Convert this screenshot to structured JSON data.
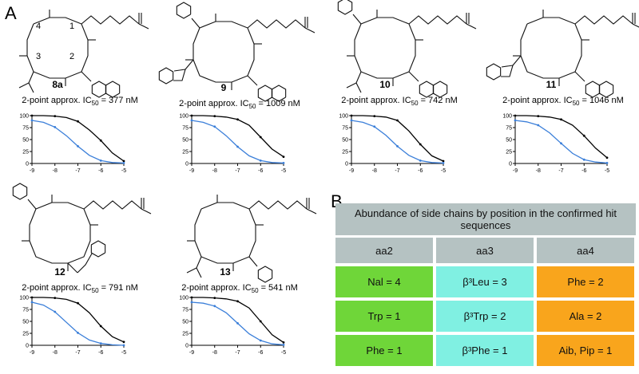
{
  "panels": [
    "A",
    "B"
  ],
  "plot_axes": {
    "xlim": [
      -9,
      -5
    ],
    "ylim": [
      0,
      100
    ],
    "xticks": [
      -9,
      -8,
      -7,
      -6,
      -5
    ],
    "yticks": [
      0,
      25,
      50,
      75,
      100
    ]
  },
  "compounds": [
    {
      "label": "8a",
      "ring_positions": [
        "1",
        "2",
        "3",
        "4"
      ],
      "ic50": {
        "prefix": "2-point approx. IC",
        "sub": "50",
        "value": "= 377 nM"
      },
      "curves": [
        {
          "color": "#000000",
          "x": [
            -9,
            -8.5,
            -8,
            -7.5,
            -7,
            -6.5,
            -6,
            -5.5,
            -5
          ],
          "values": [
            100,
            100,
            99,
            96,
            88,
            70,
            48,
            22,
            5
          ]
        },
        {
          "color": "#3b7fd9",
          "x": [
            -9,
            -8.5,
            -8,
            -7.5,
            -7,
            -6.5,
            -6,
            -5.5,
            -5
          ],
          "values": [
            90,
            86,
            76,
            58,
            36,
            17,
            6,
            2,
            1
          ]
        }
      ]
    },
    {
      "label": "9",
      "ic50": {
        "prefix": "2-point approx. IC",
        "sub": "50",
        "value": "= 1009 nM"
      },
      "curves": [
        {
          "color": "#000000",
          "x": [
            -9,
            -8.5,
            -8,
            -7.5,
            -7,
            -6.5,
            -6,
            -5.5,
            -5
          ],
          "values": [
            100,
            100,
            99,
            97,
            92,
            80,
            55,
            30,
            14
          ]
        },
        {
          "color": "#3b7fd9",
          "x": [
            -9,
            -8.5,
            -8,
            -7.5,
            -7,
            -6.5,
            -6,
            -5.5,
            -5
          ],
          "values": [
            90,
            86,
            77,
            58,
            35,
            16,
            6,
            2,
            1
          ]
        }
      ]
    },
    {
      "label": "10",
      "ic50": {
        "prefix": "2-point approx. IC",
        "sub": "50",
        "value": "= 742 nM"
      },
      "curves": [
        {
          "color": "#000000",
          "x": [
            -9,
            -8.5,
            -8,
            -7.5,
            -7,
            -6.5,
            -6,
            -5.5,
            -5
          ],
          "values": [
            100,
            100,
            99,
            97,
            90,
            68,
            40,
            16,
            5
          ]
        },
        {
          "color": "#3b7fd9",
          "x": [
            -9,
            -8.5,
            -8,
            -7.5,
            -7,
            -6.5,
            -6,
            -5.5,
            -5
          ],
          "values": [
            90,
            86,
            77,
            59,
            36,
            17,
            6,
            2,
            1
          ]
        }
      ]
    },
    {
      "label": "11",
      "ic50": {
        "prefix": "2-point approx. IC",
        "sub": "50",
        "value": "= 1046 nM"
      },
      "curves": [
        {
          "color": "#000000",
          "x": [
            -9,
            -8.5,
            -8,
            -7.5,
            -7,
            -6.5,
            -6,
            -5.5,
            -5
          ],
          "values": [
            100,
            100,
            99,
            97,
            92,
            80,
            58,
            32,
            12
          ]
        },
        {
          "color": "#3b7fd9",
          "x": [
            -9,
            -8.5,
            -8,
            -7.5,
            -7,
            -6.5,
            -6,
            -5.5,
            -5
          ],
          "values": [
            90,
            87,
            80,
            64,
            42,
            21,
            8,
            3,
            1
          ]
        }
      ]
    },
    {
      "label": "12",
      "ic50": {
        "prefix": "2-point approx. IC",
        "sub": "50",
        "value": "= 791 nM"
      },
      "curves": [
        {
          "color": "#000000",
          "x": [
            -9,
            -8.5,
            -8,
            -7.5,
            -7,
            -6.5,
            -6,
            -5.5,
            -5
          ],
          "values": [
            100,
            100,
            99,
            96,
            88,
            68,
            40,
            18,
            7
          ]
        },
        {
          "color": "#3b7fd9",
          "x": [
            -9,
            -8.5,
            -8,
            -7.5,
            -7,
            -6.5,
            -6,
            -5.5,
            -5
          ],
          "values": [
            90,
            84,
            70,
            48,
            26,
            11,
            4,
            1,
            0
          ]
        }
      ]
    },
    {
      "label": "13",
      "ic50": {
        "prefix": "2-point approx. IC",
        "sub": "50",
        "value": "= 541 nM"
      },
      "curves": [
        {
          "color": "#000000",
          "x": [
            -9,
            -8.5,
            -8,
            -7.5,
            -7,
            -6.5,
            -6,
            -5.5,
            -5
          ],
          "values": [
            100,
            100,
            99,
            97,
            92,
            78,
            50,
            22,
            6
          ]
        },
        {
          "color": "#3b7fd9",
          "x": [
            -9,
            -8.5,
            -8,
            -7.5,
            -7,
            -6.5,
            -6,
            -5.5,
            -5
          ],
          "values": [
            90,
            88,
            82,
            68,
            46,
            24,
            10,
            3,
            1
          ]
        }
      ]
    }
  ],
  "table": {
    "title": "Abundance of side chains by position in the confirmed hit sequences",
    "columns": [
      "aa2",
      "aa3",
      "aa4"
    ],
    "rows": [
      [
        "Nal = 4",
        "β³Leu = 3",
        "Phe = 2"
      ],
      [
        "Trp = 1",
        "β³Trp = 2",
        "Ala = 2"
      ],
      [
        "Phe = 1",
        "β³Phe = 1",
        "Aib, Pip = 1"
      ]
    ]
  }
}
